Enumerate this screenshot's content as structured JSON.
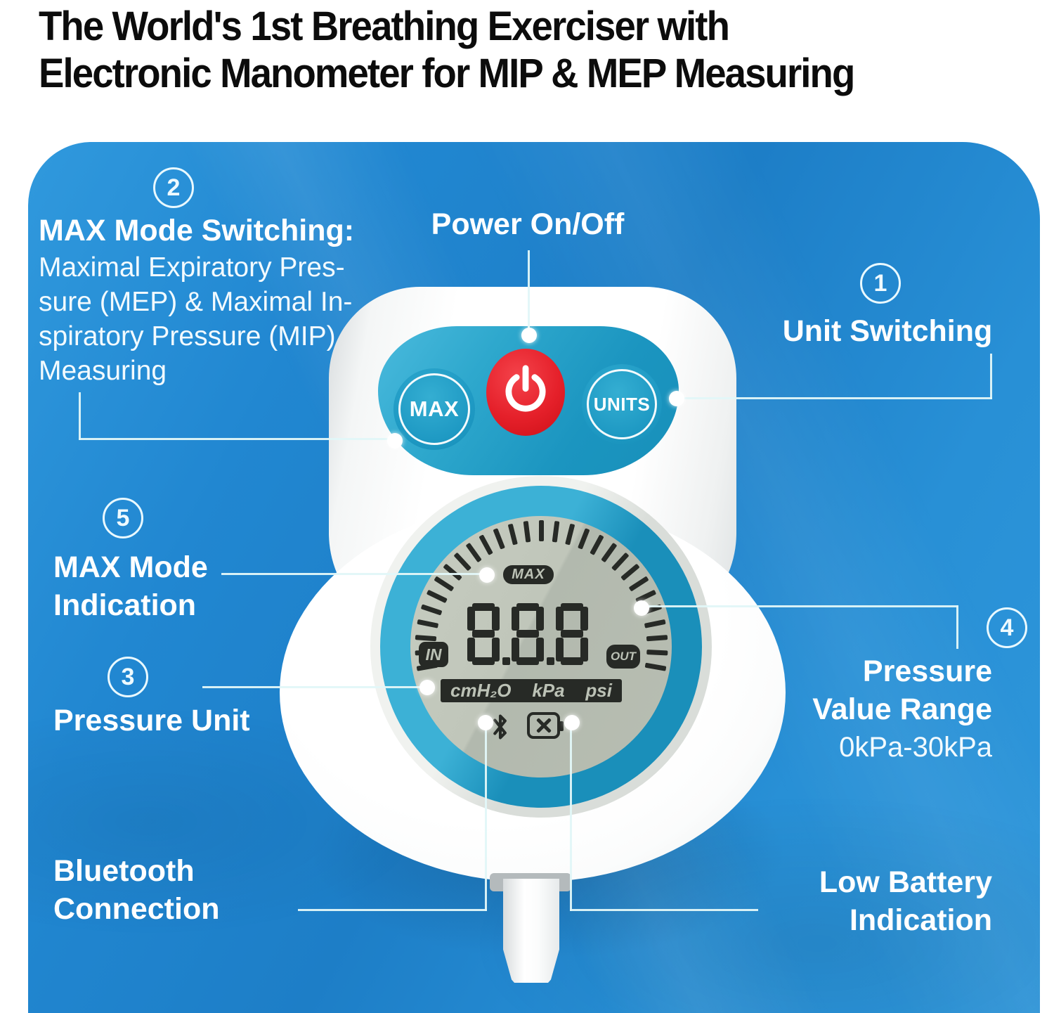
{
  "title": {
    "line1": "The World's 1st Breathing Exerciser with",
    "line2": "Electronic Manometer for MIP & MEP Measuring"
  },
  "callouts": {
    "power": {
      "label": "Power On/Off"
    },
    "unit_switching": {
      "number": "1",
      "label": "Unit Switching"
    },
    "max_mode_switching": {
      "number": "2",
      "heading": "MAX Mode Switching:",
      "line1": "Maximal Expiratory Pres-",
      "line2": "sure (MEP) & Maximal In-",
      "line3": "spiratory Pressure (MIP)",
      "line4": "Measuring"
    },
    "pressure_unit": {
      "number": "3",
      "label": "Pressure Unit"
    },
    "pressure_value_range": {
      "number": "4",
      "line1": "Pressure",
      "line2": "Value Range",
      "range": "0kPa-30kPa"
    },
    "max_mode_indication": {
      "number": "5",
      "line1": "MAX Mode",
      "line2": "Indication"
    },
    "bluetooth_connection": {
      "line1": "Bluetooth",
      "line2": "Connection"
    },
    "low_battery_indication": {
      "line1": "Low Battery",
      "line2": "Indication"
    }
  },
  "device": {
    "buttons": {
      "max": "MAX",
      "units": "UNITS"
    },
    "display": {
      "max_flag": "MAX",
      "value": "888",
      "in_label": "IN",
      "out_label": "OUT",
      "unit_cmh2o": "cmH₂O",
      "unit_kpa": "kPa",
      "unit_psi": "psi"
    }
  },
  "colors": {
    "panel_blue": "#1f82ca",
    "teal": "#1d96c0",
    "power_red": "#e5202a",
    "lcd_face": "#bac0b4",
    "lcd_dark": "#272a26",
    "callout_line": "#e2f7f8"
  }
}
